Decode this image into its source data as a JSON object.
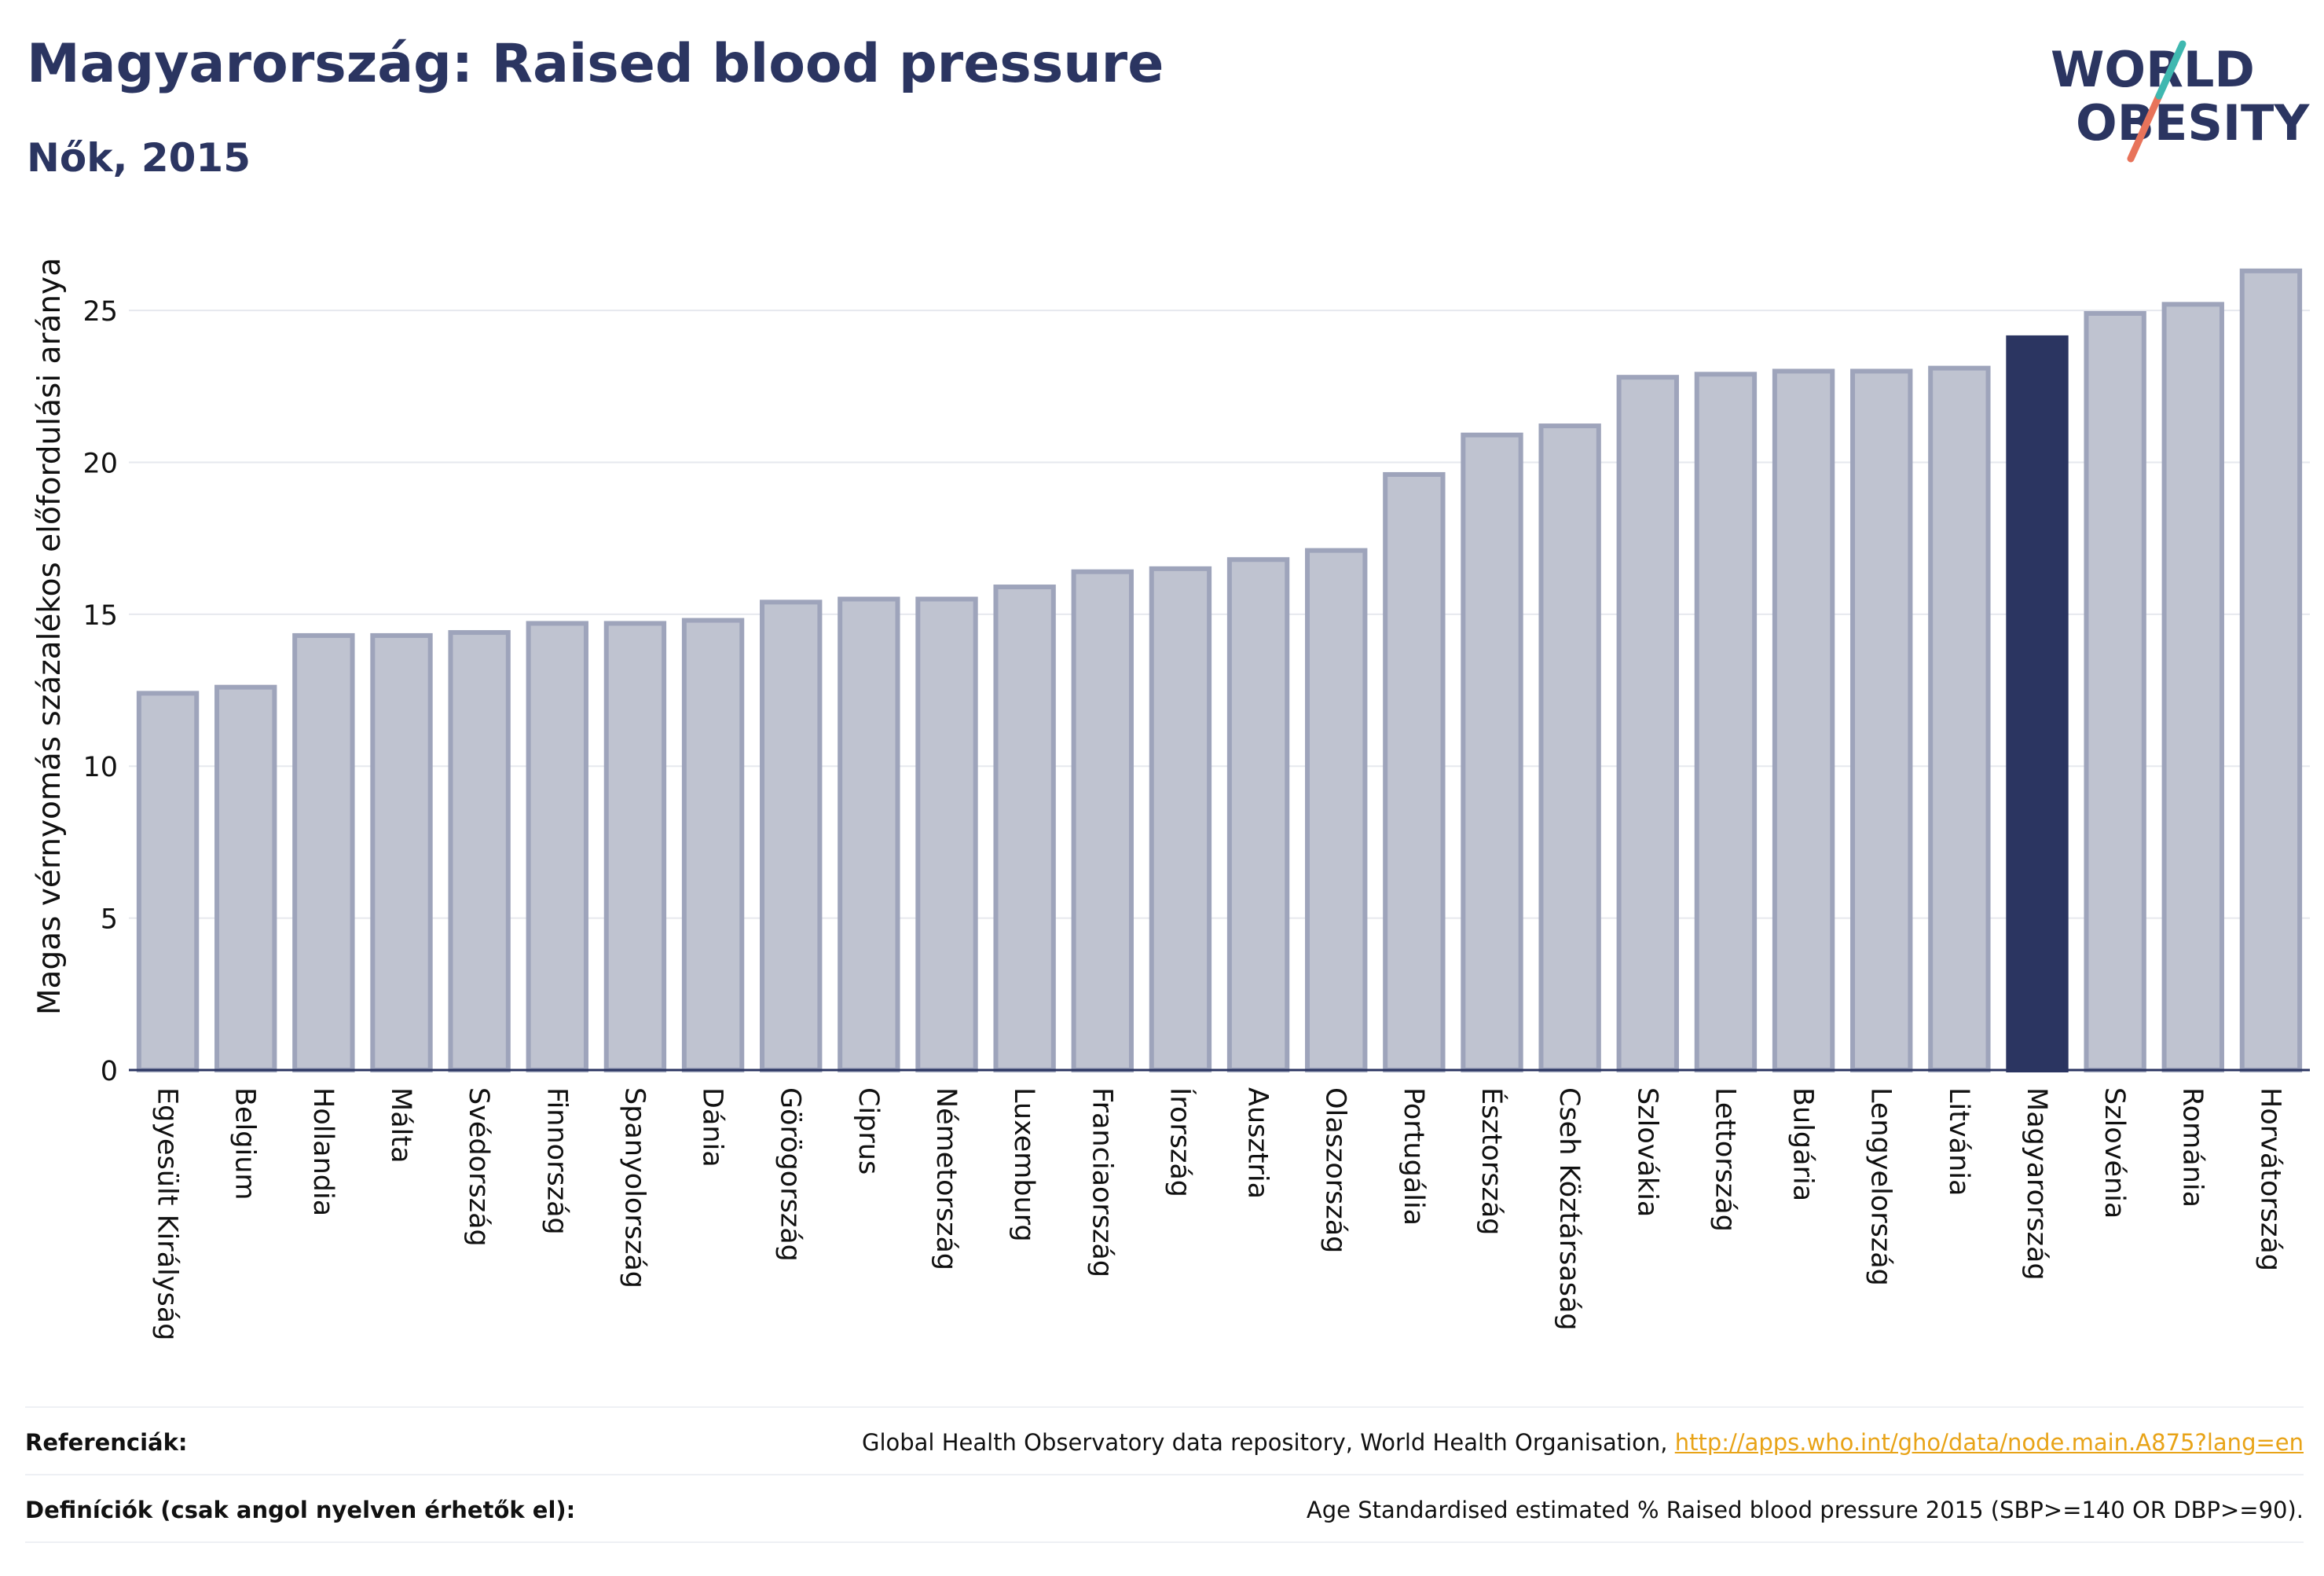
{
  "header": {
    "title": "Magyarország: Raised blood pressure",
    "subtitle": "Nők, 2015"
  },
  "logo": {
    "line1": "WORLD",
    "line2": "OBESITY"
  },
  "chart_data": {
    "type": "bar",
    "ylabel": "Magas vérnyomás százalékos előfordulási aránya",
    "xlabel": "",
    "ylim": [
      0,
      27.2
    ],
    "yticks": [
      0,
      5,
      10,
      15,
      20,
      25
    ],
    "grid": true,
    "highlight": "Magyarország",
    "colors": {
      "bar": "#bfc3d0",
      "bar_border": "#9ea4bb",
      "highlight": "#2b3561",
      "grid": "#e6e8ee"
    },
    "categories": [
      "Egyesült Királyság",
      "Belgium",
      "Hollandia",
      "Málta",
      "Svédország",
      "Finnország",
      "Spanyolország",
      "Dánia",
      "Görögország",
      "Ciprus",
      "Németország",
      "Luxemburg",
      "Franciaország",
      "Írország",
      "Ausztria",
      "Olaszország",
      "Portugália",
      "Észtország",
      "Cseh Köztársaság",
      "Szlovákia",
      "Lettország",
      "Bulgária",
      "Lengyelország",
      "Litvánia",
      "Magyarország",
      "Szlovénia",
      "Románia",
      "Horvátország"
    ],
    "values": [
      12.4,
      12.6,
      14.3,
      14.3,
      14.4,
      14.7,
      14.7,
      14.8,
      15.4,
      15.5,
      15.5,
      15.9,
      16.4,
      16.5,
      16.8,
      17.1,
      19.6,
      20.9,
      21.2,
      22.8,
      22.9,
      23.0,
      23.0,
      23.1,
      24.1,
      24.9,
      25.2,
      26.3
    ]
  },
  "footer": {
    "references_label": "Referenciák:",
    "references_text": "Global Health Observatory data repository, World Health Organisation, ",
    "references_link": "http://apps.who.int/gho/data/node.main.A875?lang=en",
    "definitions_label": "Definíciók (csak angol nyelven érhetők el):",
    "definitions_text": "Age Standardised estimated % Raised blood pressure 2015 (SBP>=140 OR DBP>=90)."
  }
}
